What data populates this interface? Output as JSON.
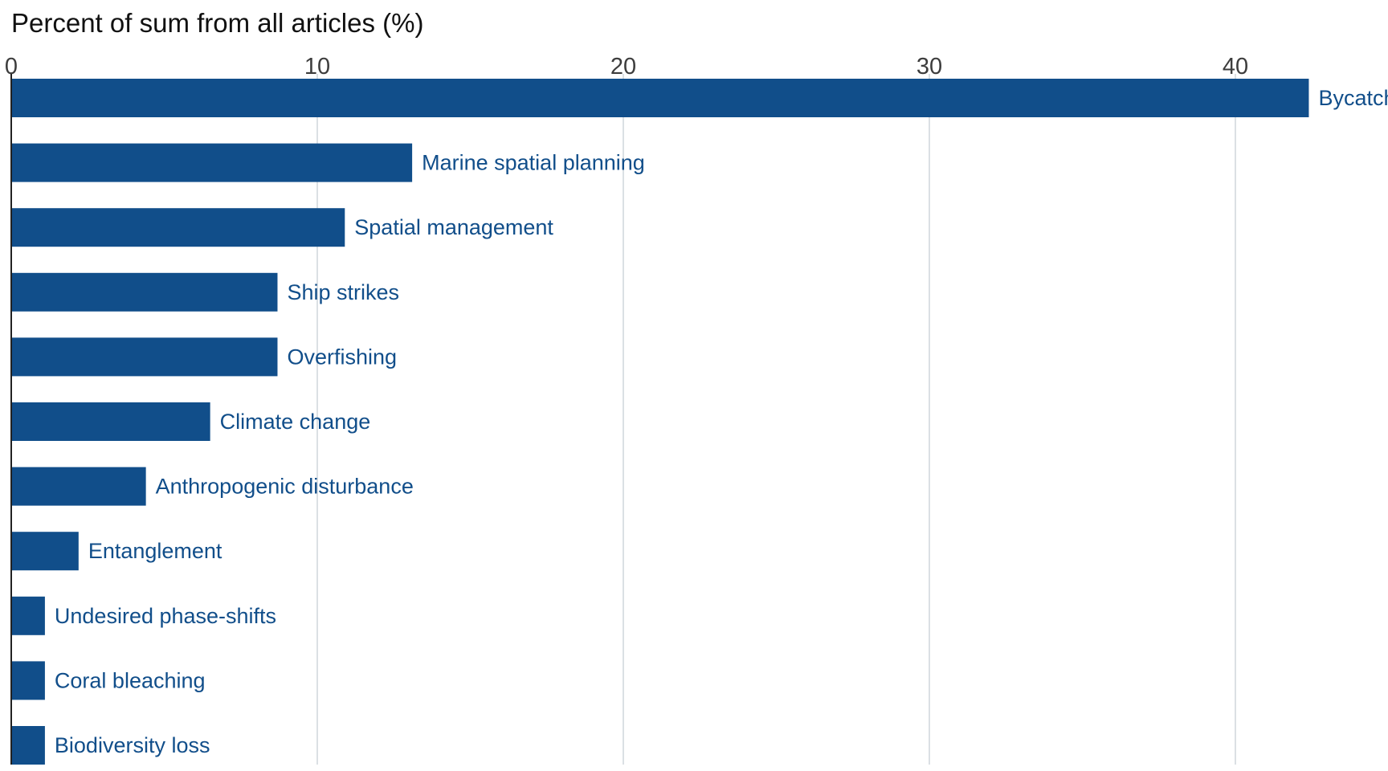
{
  "chart_data": {
    "type": "bar",
    "orientation": "horizontal",
    "title": "Percent of sum from all articles (%)",
    "xlabel": "",
    "ylabel": "",
    "xlim": [
      0,
      45
    ],
    "ticks": [
      0,
      10,
      20,
      30,
      40
    ],
    "grid": true,
    "bar_color": "#114e8a",
    "label_color": "#114e8a",
    "categories": [
      "Bycatch",
      "Marine spatial planning",
      "Spatial management",
      "Ship strikes",
      "Overfishing",
      "Climate change",
      "Anthropogenic disturbance",
      "Entanglement",
      "Undesired phase-shifts",
      "Coral bleaching",
      "Biodiversity loss"
    ],
    "values": [
      42.4,
      13.1,
      10.9,
      8.7,
      8.7,
      6.5,
      4.4,
      2.2,
      1.1,
      1.1,
      1.1
    ]
  }
}
